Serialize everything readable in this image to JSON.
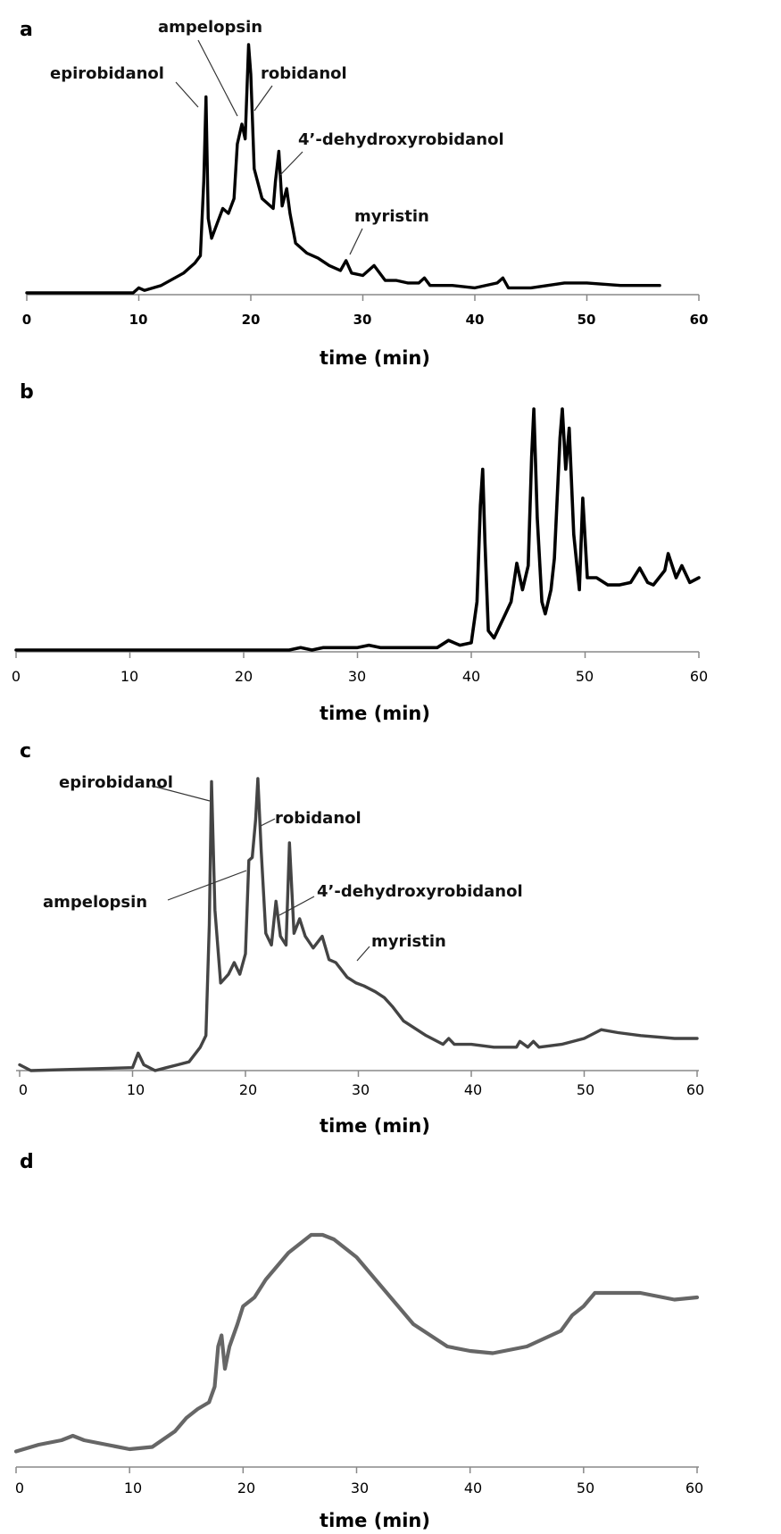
{
  "chart_data": [
    {
      "panel": "a",
      "type": "line",
      "xlabel": "time (min)",
      "xlim": [
        0,
        60
      ],
      "xticks": [
        0,
        10,
        20,
        30,
        40,
        50,
        60
      ],
      "ylim": [
        0,
        1
      ],
      "color": "#000000",
      "series": [
        {
          "x": [
            0,
            9.5,
            10,
            10.5,
            12,
            14,
            15,
            15.5,
            15.8,
            16.0,
            16.2,
            16.5,
            17,
            17.5,
            18,
            18.5,
            18.8,
            19.2,
            19.5,
            19.8,
            20.0,
            20.3,
            21,
            22,
            22.2,
            22.5,
            22.8,
            23.2,
            23.5,
            24,
            25,
            26,
            27,
            28,
            28.5,
            29,
            30,
            31,
            32,
            33,
            34,
            35,
            35.5,
            36,
            38,
            40,
            42,
            42.5,
            43,
            45,
            48,
            50,
            53,
            56.5
          ],
          "y": [
            0,
            0,
            0.02,
            0.01,
            0.03,
            0.08,
            0.12,
            0.15,
            0.45,
            0.79,
            0.3,
            0.22,
            0.28,
            0.34,
            0.32,
            0.38,
            0.6,
            0.68,
            0.62,
            1.0,
            0.88,
            0.5,
            0.38,
            0.34,
            0.45,
            0.57,
            0.35,
            0.42,
            0.32,
            0.2,
            0.16,
            0.14,
            0.11,
            0.09,
            0.13,
            0.08,
            0.07,
            0.11,
            0.05,
            0.05,
            0.04,
            0.04,
            0.06,
            0.03,
            0.03,
            0.02,
            0.04,
            0.06,
            0.02,
            0.02,
            0.04,
            0.04,
            0.03,
            0.03
          ]
        }
      ],
      "annotations": [
        {
          "label": "epirobidanol"
        },
        {
          "label": "ampelopsin"
        },
        {
          "label": "robidanol"
        },
        {
          "label": "4’-dehydroxyrobidanol"
        },
        {
          "label": "myristin"
        }
      ]
    },
    {
      "panel": "b",
      "type": "line",
      "xlabel": "time (min)",
      "xlim": [
        0,
        60
      ],
      "xticks": [
        0,
        10,
        20,
        30,
        40,
        50,
        60
      ],
      "ylim": [
        0,
        1
      ],
      "color": "#000000",
      "series": [
        {
          "x": [
            0,
            24,
            25,
            26,
            27,
            30,
            31,
            32,
            35,
            37,
            38,
            39,
            40,
            40.5,
            40.8,
            41.0,
            41.2,
            41.5,
            42,
            43,
            43.5,
            44,
            44.5,
            45,
            45.3,
            45.5,
            45.8,
            46.2,
            46.5,
            47,
            47.3,
            47.8,
            48.0,
            48.3,
            48.6,
            49,
            49.5,
            49.8,
            50.2,
            51,
            52,
            53,
            54,
            54.8,
            55.5,
            56,
            57,
            57.3,
            58,
            58.5,
            59.2,
            60
          ],
          "y": [
            0,
            0,
            0.01,
            0.0,
            0.01,
            0.01,
            0.02,
            0.01,
            0.01,
            0.01,
            0.04,
            0.02,
            0.03,
            0.2,
            0.6,
            0.75,
            0.45,
            0.08,
            0.05,
            0.15,
            0.2,
            0.36,
            0.25,
            0.35,
            0.8,
            1.0,
            0.55,
            0.2,
            0.15,
            0.25,
            0.38,
            0.88,
            1.0,
            0.75,
            0.92,
            0.48,
            0.25,
            0.63,
            0.3,
            0.3,
            0.27,
            0.27,
            0.28,
            0.34,
            0.28,
            0.27,
            0.33,
            0.4,
            0.3,
            0.35,
            0.28,
            0.3
          ]
        }
      ]
    },
    {
      "panel": "c",
      "type": "line",
      "xlabel": "time (min)",
      "xlim": [
        0,
        60
      ],
      "xticks": [
        0,
        10,
        20,
        30,
        40,
        50,
        60
      ],
      "ylim": [
        0,
        1
      ],
      "color": "#444444",
      "series": [
        {
          "x": [
            0,
            1,
            10,
            10.5,
            11,
            12,
            13,
            14,
            15,
            16,
            16.5,
            16.8,
            17.0,
            17.3,
            17.8,
            18.5,
            19,
            19.5,
            20,
            20.3,
            20.6,
            20.9,
            21.1,
            21.4,
            21.8,
            22.3,
            22.7,
            23.1,
            23.6,
            23.9,
            24.3,
            24.8,
            25.3,
            26,
            26.8,
            27.4,
            28,
            29,
            29.8,
            30.5,
            31.5,
            32.3,
            33,
            34,
            36,
            37.5,
            38,
            38.5,
            40,
            42,
            44,
            44.3,
            45,
            45.5,
            46,
            48,
            50,
            51.5,
            53,
            55,
            58,
            60
          ],
          "y": [
            0.02,
            0.0,
            0.01,
            0.06,
            0.02,
            0.0,
            0.01,
            0.02,
            0.03,
            0.08,
            0.12,
            0.5,
            0.99,
            0.55,
            0.3,
            0.33,
            0.37,
            0.33,
            0.4,
            0.72,
            0.73,
            0.86,
            1.0,
            0.75,
            0.47,
            0.43,
            0.58,
            0.46,
            0.43,
            0.78,
            0.47,
            0.52,
            0.46,
            0.42,
            0.46,
            0.38,
            0.37,
            0.32,
            0.3,
            0.29,
            0.27,
            0.25,
            0.22,
            0.17,
            0.12,
            0.09,
            0.11,
            0.09,
            0.09,
            0.08,
            0.08,
            0.1,
            0.08,
            0.1,
            0.08,
            0.09,
            0.11,
            0.14,
            0.13,
            0.12,
            0.11,
            0.11
          ]
        }
      ],
      "annotations": [
        {
          "label": "epirobidanol"
        },
        {
          "label": "robidanol"
        },
        {
          "label": "ampelopsin"
        },
        {
          "label": "4’-dehydroxyrobidanol"
        },
        {
          "label": "myristin"
        }
      ]
    },
    {
      "panel": "d",
      "type": "line",
      "xlabel": "time (min)",
      "xlim": [
        0,
        60
      ],
      "xticks": [
        0,
        10,
        20,
        30,
        40,
        50,
        60
      ],
      "ylim": [
        0,
        1
      ],
      "color": "#666666",
      "series": [
        {
          "x": [
            0,
            2,
            4,
            5,
            6,
            8,
            10,
            12,
            14,
            15,
            16,
            17,
            17.5,
            17.8,
            18.1,
            18.4,
            18.8,
            19.5,
            20,
            21,
            22,
            24,
            26,
            27,
            28,
            30,
            32,
            35,
            38,
            40,
            42,
            45,
            48,
            49,
            50,
            51,
            52,
            55,
            58,
            60
          ],
          "y": [
            0.03,
            0.06,
            0.08,
            0.1,
            0.08,
            0.06,
            0.04,
            0.05,
            0.12,
            0.18,
            0.22,
            0.25,
            0.32,
            0.5,
            0.55,
            0.4,
            0.5,
            0.6,
            0.68,
            0.72,
            0.8,
            0.92,
            1.0,
            1.0,
            0.98,
            0.9,
            0.78,
            0.6,
            0.5,
            0.48,
            0.47,
            0.5,
            0.57,
            0.64,
            0.68,
            0.74,
            0.74,
            0.74,
            0.71,
            0.72
          ]
        }
      ]
    }
  ],
  "figure": {
    "panels": [
      {
        "letter": "a",
        "xlabel": "time (min)",
        "ticks": [
          "0",
          "10",
          "20",
          "30",
          "40",
          "50",
          "60"
        ],
        "labels": [
          "epirobidanol",
          "ampelopsin",
          "robidanol",
          "4’-dehydroxyrobidanol",
          "myristin"
        ]
      },
      {
        "letter": "b",
        "xlabel": "time (min)",
        "ticks": [
          "0",
          "10",
          "20",
          "30",
          "40",
          "50",
          "60"
        ]
      },
      {
        "letter": "c",
        "xlabel": "time (min)",
        "ticks": [
          "0",
          "10",
          "20",
          "30",
          "40",
          "50",
          "60"
        ],
        "labels": [
          "epirobidanol",
          "robidanol",
          "ampelopsin",
          "4’-dehydroxyrobidanol",
          "myristin"
        ]
      },
      {
        "letter": "d",
        "xlabel": "time (min)",
        "ticks": [
          "0",
          "10",
          "20",
          "30",
          "40",
          "50",
          "60"
        ]
      }
    ]
  }
}
